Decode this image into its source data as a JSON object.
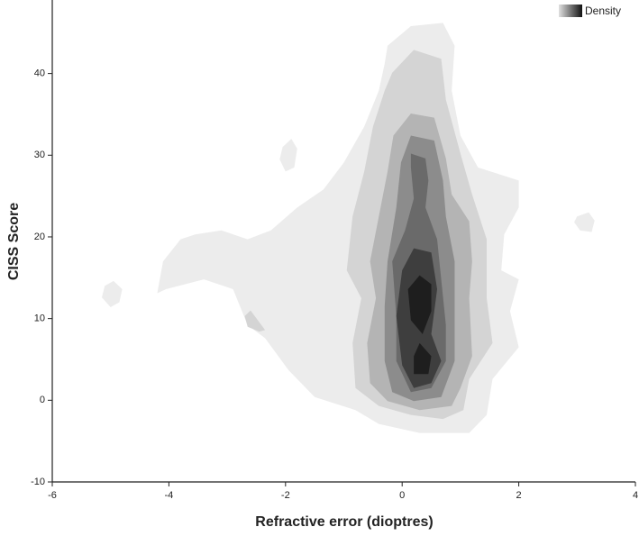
{
  "chart_data": {
    "type": "contour",
    "xlabel": "Refractive error (dioptres)",
    "ylabel": "CISS Score",
    "legend_title": "Density",
    "legend_position": "top-right",
    "xlim": [
      -6,
      4
    ],
    "ylim": [
      -10,
      49
    ],
    "xticks": [
      -6,
      -4,
      -2,
      0,
      2,
      4
    ],
    "yticks": [
      -10,
      0,
      10,
      20,
      30,
      40
    ],
    "regions": [
      {
        "color": "#ececec",
        "x": [
          -0.25,
          0.15,
          0.7,
          0.9,
          0.85,
          1.0,
          1.3,
          2.0,
          2.0,
          1.75,
          1.7,
          2.0,
          1.85,
          2.0,
          1.55,
          1.45,
          1.15,
          0.3,
          -0.4,
          -0.8,
          -1.5,
          -1.95,
          -2.35,
          -2.65,
          -2.9,
          -3.4,
          -4.05,
          -4.2,
          -4.1,
          -3.8,
          -3.55,
          -3.1,
          -2.65,
          -2.25,
          -1.8,
          -1.35,
          -1.0,
          -0.65,
          -0.4,
          -0.3
        ],
        "y": [
          43.4,
          45.8,
          46.2,
          43.4,
          37.9,
          32.4,
          28.5,
          26.9,
          23.6,
          20.3,
          15.9,
          14.8,
          10.9,
          6.5,
          2.6,
          -1.8,
          -4.0,
          -4.0,
          -2.9,
          -1.2,
          0.4,
          3.7,
          7.6,
          9.2,
          13.6,
          14.8,
          13.6,
          13.1,
          17.0,
          19.7,
          20.3,
          20.8,
          19.7,
          20.8,
          23.6,
          25.8,
          29.1,
          33.5,
          37.9,
          41.2
        ]
      },
      {
        "color": "#ececec",
        "x": [
          -5.1,
          -4.95,
          -4.8,
          -4.85,
          -5.0,
          -5.15
        ],
        "y": [
          14.0,
          14.6,
          13.6,
          12.0,
          11.4,
          12.6
        ]
      },
      {
        "color": "#ececec",
        "x": [
          -2.05,
          -1.9,
          -1.8,
          -1.85,
          -2.0,
          -2.1
        ],
        "y": [
          31.0,
          32.0,
          30.8,
          28.5,
          28.0,
          29.5
        ]
      },
      {
        "color": "#ececec",
        "x": [
          3.0,
          3.2,
          3.3,
          3.25,
          3.05,
          2.95
        ],
        "y": [
          22.5,
          23.0,
          22.0,
          20.6,
          20.8,
          21.8
        ]
      },
      {
        "color": "#d4d4d4",
        "x": [
          -0.17,
          0.2,
          0.67,
          0.75,
          1.0,
          1.2,
          1.45,
          1.45,
          1.55,
          1.15,
          1.05,
          0.7,
          0.15,
          -0.4,
          -0.8,
          -0.85,
          -0.7,
          -0.95,
          -0.85,
          -0.65,
          -0.5,
          -0.3
        ],
        "y": [
          40.1,
          42.9,
          41.8,
          36.8,
          30.2,
          25.2,
          19.7,
          12.5,
          7.0,
          2.6,
          -1.2,
          -2.3,
          -1.8,
          -0.7,
          1.5,
          7.0,
          12.5,
          15.9,
          22.5,
          28.0,
          33.5,
          37.9
        ]
      },
      {
        "color": "#d4d4d4",
        "x": [
          -2.7,
          -2.6,
          -2.35,
          -2.45,
          -2.65
        ],
        "y": [
          10.3,
          11.0,
          8.6,
          8.4,
          9.0
        ]
      },
      {
        "color": "#b4b4b4",
        "x": [
          0.15,
          0.55,
          0.75,
          0.85,
          1.15,
          1.2,
          1.15,
          1.2,
          1.0,
          0.85,
          0.3,
          -0.25,
          -0.55,
          -0.6,
          -0.45,
          -0.55,
          -0.4,
          -0.25,
          -0.15
        ],
        "y": [
          35.1,
          34.6,
          29.6,
          25.2,
          21.9,
          17.0,
          12.5,
          5.4,
          1.5,
          -0.7,
          -1.2,
          -0.1,
          2.1,
          7.0,
          12.5,
          17.0,
          22.5,
          28.0,
          32.4
        ]
      },
      {
        "color": "#8c8c8c",
        "x": [
          0.15,
          0.55,
          0.7,
          0.75,
          0.9,
          0.9,
          0.9,
          0.67,
          0.2,
          -0.17,
          -0.3,
          -0.3,
          -0.25,
          -0.1,
          -0.02
        ],
        "y": [
          32.4,
          31.8,
          26.9,
          22.5,
          17.0,
          11.5,
          4.8,
          0.4,
          -0.1,
          1.0,
          4.8,
          11.5,
          17.0,
          23.6,
          29.1
        ]
      },
      {
        "color": "#6a6a6a",
        "x": [
          0.15,
          0.4,
          0.45,
          0.4,
          0.6,
          0.67,
          0.75,
          0.75,
          0.5,
          0.15,
          -0.1,
          -0.1,
          -0.17,
          0.05,
          0.2,
          0.15
        ],
        "y": [
          30.2,
          29.6,
          26.9,
          23.6,
          19.7,
          14.8,
          9.2,
          4.8,
          1.5,
          1.0,
          4.8,
          10.3,
          17.0,
          20.8,
          24.7,
          28.5
        ]
      },
      {
        "color": "#3e3e3e",
        "x": [
          0.2,
          0.5,
          0.6,
          0.5,
          0.67,
          0.5,
          0.2,
          0,
          -0.1,
          0
        ],
        "y": [
          18.6,
          18.1,
          13.6,
          8.1,
          4.8,
          2.1,
          1.5,
          4.3,
          10.3,
          15.9
        ]
      },
      {
        "color": "#1e1e1e",
        "x": [
          0.3,
          0.5,
          0.5,
          0.35,
          0.15,
          0.1
        ],
        "y": [
          15.3,
          14.2,
          10.9,
          8.1,
          9.8,
          13.6
        ]
      },
      {
        "color": "#1e1e1e",
        "x": [
          0.3,
          0.5,
          0.45,
          0.2,
          0.2
        ],
        "y": [
          7.0,
          5.4,
          3.2,
          3.2,
          5.4
        ]
      }
    ]
  }
}
